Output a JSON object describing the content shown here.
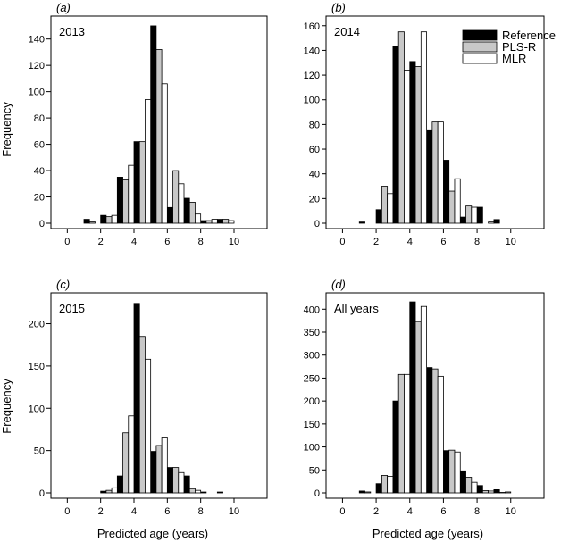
{
  "colors": {
    "Reference": "#000000",
    "PLS-R": "#c8c8c8",
    "MLR": "#ffffff",
    "outline": "#000000"
  },
  "legend": [
    {
      "name": "Reference"
    },
    {
      "name": "PLS-R"
    },
    {
      "name": "MLR"
    }
  ],
  "xlabel": "Predicted age (years)",
  "ylabel": "Frequency",
  "chart_data": [
    {
      "type": "bar",
      "panel_label": "(a)",
      "title": "2013",
      "xlim": [
        -0.5,
        11.5
      ],
      "ylim": [
        0,
        152
      ],
      "xticks": [
        0,
        2,
        4,
        6,
        8,
        10
      ],
      "yticks": [
        0,
        20,
        40,
        60,
        80,
        100,
        120,
        140
      ],
      "bin_width": 1,
      "bin_starts": [
        0,
        1,
        2,
        3,
        4,
        5,
        6,
        7,
        8,
        9,
        10
      ],
      "series": [
        {
          "name": "Reference",
          "values": [
            0,
            3,
            6,
            35,
            62,
            150,
            12,
            19,
            2,
            3,
            0
          ]
        },
        {
          "name": "PLS-R",
          "values": [
            0,
            1,
            5,
            33,
            62,
            132,
            40,
            16,
            2,
            3,
            0
          ]
        },
        {
          "name": "MLR",
          "values": [
            0,
            0,
            6,
            44,
            94,
            106,
            30,
            7,
            3,
            2,
            0
          ]
        }
      ]
    },
    {
      "type": "bar",
      "panel_label": "(b)",
      "title": "2014",
      "xlim": [
        -0.5,
        11.5
      ],
      "ylim": [
        0,
        162
      ],
      "xticks": [
        0,
        2,
        4,
        6,
        8,
        10
      ],
      "yticks": [
        0,
        20,
        40,
        60,
        80,
        100,
        120,
        140,
        160
      ],
      "bin_width": 1,
      "bin_starts": [
        0,
        1,
        2,
        3,
        4,
        5,
        6,
        7,
        8,
        9,
        10
      ],
      "series": [
        {
          "name": "Reference",
          "values": [
            0,
            1,
            11,
            143,
            131,
            75,
            51,
            5,
            13,
            3,
            0
          ]
        },
        {
          "name": "PLS-R",
          "values": [
            0,
            0,
            30,
            155,
            127,
            82,
            26,
            14,
            0,
            0,
            0
          ]
        },
        {
          "name": "MLR",
          "values": [
            0,
            0,
            24,
            124,
            155,
            82,
            36,
            13,
            1,
            0,
            0
          ]
        }
      ]
    },
    {
      "type": "bar",
      "panel_label": "(c)",
      "title": "2015",
      "xlim": [
        -0.5,
        11.5
      ],
      "ylim": [
        0,
        228
      ],
      "xticks": [
        0,
        2,
        4,
        6,
        8,
        10
      ],
      "yticks": [
        0,
        50,
        100,
        150,
        200
      ],
      "bin_width": 1,
      "bin_starts": [
        0,
        1,
        2,
        3,
        4,
        5,
        6,
        7,
        8,
        9,
        10
      ],
      "series": [
        {
          "name": "Reference",
          "values": [
            0,
            0,
            2,
            20,
            224,
            49,
            30,
            20,
            1,
            1,
            0
          ]
        },
        {
          "name": "PLS-R",
          "values": [
            0,
            0,
            3,
            71,
            185,
            56,
            30,
            5,
            0,
            0,
            0
          ]
        },
        {
          "name": "MLR",
          "values": [
            0,
            0,
            6,
            91,
            158,
            66,
            24,
            3,
            0,
            0,
            0
          ]
        }
      ]
    },
    {
      "type": "bar",
      "panel_label": "(d)",
      "title": "All years",
      "xlim": [
        -0.5,
        11.5
      ],
      "ylim": [
        0,
        420
      ],
      "xticks": [
        0,
        2,
        4,
        6,
        8,
        10
      ],
      "yticks": [
        0,
        50,
        100,
        150,
        200,
        250,
        300,
        350,
        400
      ],
      "bin_width": 1,
      "bin_starts": [
        0,
        1,
        2,
        3,
        4,
        5,
        6,
        7,
        8,
        9,
        10
      ],
      "series": [
        {
          "name": "Reference",
          "values": [
            0,
            4,
            20,
            200,
            416,
            273,
            92,
            48,
            16,
            7,
            0
          ]
        },
        {
          "name": "PLS-R",
          "values": [
            0,
            2,
            38,
            258,
            373,
            270,
            93,
            34,
            5,
            1,
            0
          ]
        },
        {
          "name": "MLR",
          "values": [
            0,
            0,
            36,
            258,
            406,
            254,
            89,
            23,
            4,
            2,
            0
          ]
        }
      ]
    }
  ]
}
